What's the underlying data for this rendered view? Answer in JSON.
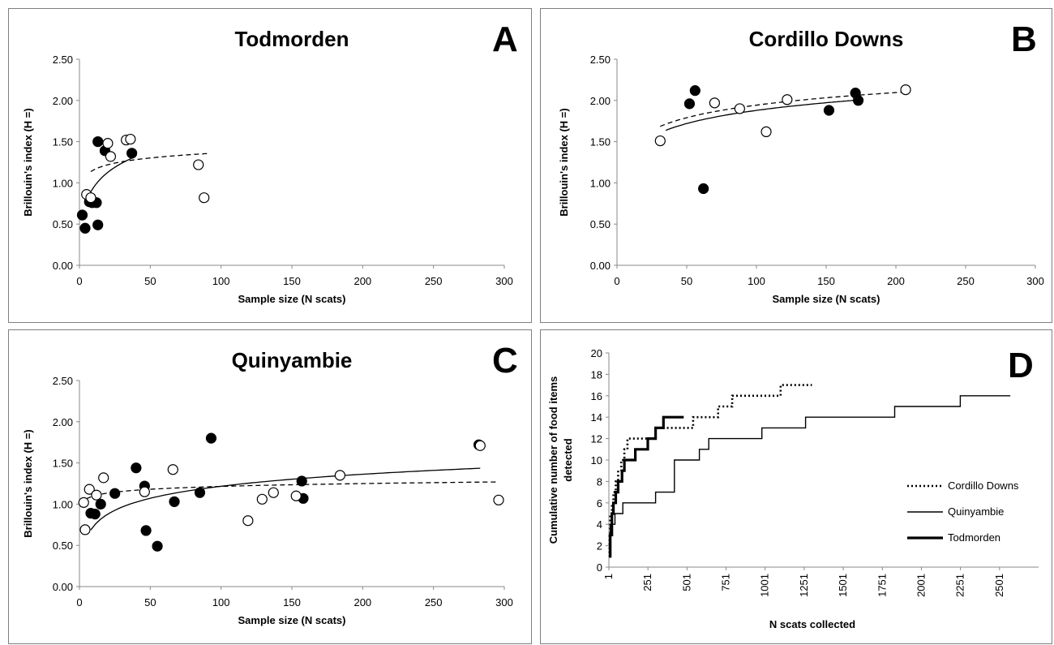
{
  "chart_data": [
    {
      "panel": "A",
      "type": "scatter",
      "title": "Todmorden",
      "xlabel": "Sample size (N scats)",
      "ylabel": "Brillouin's index (H =)",
      "xlim": [
        0,
        300
      ],
      "ylim": [
        0,
        2.5
      ],
      "x_ticks": [
        "0",
        "50",
        "100",
        "150",
        "200",
        "250",
        "300"
      ],
      "y_ticks": [
        "0.00",
        "0.50",
        "1.00",
        "1.50",
        "2.00",
        "2.50"
      ],
      "gridlines": false,
      "series": [
        {
          "marker": "filled",
          "x": [
            2,
            4,
            7,
            9,
            12,
            13,
            18,
            37
          ],
          "y": [
            0.61,
            0.45,
            0.77,
            0.76,
            0.76,
            1.5,
            1.39,
            1.36
          ]
        },
        {
          "marker": "open",
          "x": [
            5,
            8,
            20,
            22,
            33,
            36,
            84,
            88
          ],
          "y": [
            0.86,
            0.82,
            1.48,
            1.32,
            1.52,
            1.53,
            1.22,
            0.82
          ]
        },
        {
          "marker": "filled",
          "x": [
            13
          ],
          "y": [
            0.49
          ]
        }
      ],
      "trend_solid": {
        "a": 0.2,
        "b": 0.3,
        "c": 2.0,
        "xmin": 6,
        "xmax": 38
      },
      "trend_dashed": {
        "a": 0.95,
        "b": 0.09,
        "c": 0,
        "xmin": 8,
        "xmax": 90
      }
    },
    {
      "panel": "B",
      "type": "scatter",
      "title": "Cordillo Downs",
      "xlabel": "Sample size (N scats)",
      "ylabel": "Brillouin's index (H =)",
      "xlim": [
        0,
        300
      ],
      "ylim": [
        0,
        2.5
      ],
      "x_ticks": [
        "0",
        "50",
        "100",
        "150",
        "200",
        "250",
        "300"
      ],
      "y_ticks": [
        "0.00",
        "0.50",
        "1.00",
        "1.50",
        "2.00",
        "2.50"
      ],
      "gridlines": false,
      "series": [
        {
          "marker": "filled",
          "x": [
            52,
            56,
            62,
            152,
            171,
            173
          ],
          "y": [
            1.96,
            2.12,
            0.93,
            1.88,
            2.09,
            2.0
          ]
        },
        {
          "marker": "open",
          "x": [
            31,
            70,
            88,
            107,
            122,
            207
          ],
          "y": [
            1.51,
            1.97,
            1.9,
            1.62,
            2.01,
            2.13
          ]
        }
      ],
      "trend_solid": {
        "a": 0.82,
        "b": 0.23,
        "c": 0,
        "xmin": 35,
        "xmax": 173
      },
      "trend_dashed": {
        "a": 0.93,
        "b": 0.22,
        "c": 0,
        "xmin": 31,
        "xmax": 207
      }
    },
    {
      "panel": "C",
      "type": "scatter",
      "title": "Quinyambie",
      "xlabel": "Sample size (N scats)",
      "ylabel": "Brillouin's index (H =)",
      "xlim": [
        0,
        300
      ],
      "ylim": [
        0,
        2.5
      ],
      "x_ticks": [
        "0",
        "50",
        "100",
        "150",
        "200",
        "250",
        "300"
      ],
      "y_ticks": [
        "0.00",
        "0.50",
        "1.00",
        "1.50",
        "2.00",
        "2.50"
      ],
      "gridlines": false,
      "series": [
        {
          "marker": "filled",
          "x": [
            8,
            11,
            15,
            25,
            40,
            46,
            47,
            55,
            67,
            85,
            93,
            157,
            158,
            282
          ],
          "y": [
            0.89,
            0.88,
            1.0,
            1.13,
            1.44,
            1.22,
            0.68,
            0.49,
            1.03,
            1.14,
            1.8,
            1.28,
            1.07,
            1.72
          ]
        },
        {
          "marker": "open",
          "x": [
            3,
            4,
            7,
            12,
            17,
            46,
            66,
            119,
            129,
            137,
            153,
            184,
            283,
            296
          ],
          "y": [
            1.02,
            0.69,
            1.18,
            1.11,
            1.32,
            1.15,
            1.42,
            0.8,
            1.06,
            1.14,
            1.1,
            1.35,
            1.71,
            1.05
          ]
        }
      ],
      "trend_solid": {
        "a": 0.25,
        "b": 0.21,
        "c": 0,
        "xmin": 8,
        "xmax": 283
      },
      "trend_dashed": {
        "a": 0.985,
        "b": 0.05,
        "c": 0,
        "xmin": 5,
        "xmax": 296
      }
    },
    {
      "panel": "D",
      "type": "line",
      "title": "",
      "xlabel": "N scats collected",
      "ylabel": "Cumulative number of food items detected",
      "xlim": [
        1,
        2751
      ],
      "ylim": [
        0,
        20
      ],
      "x_ticks": [
        "1",
        "251",
        "501",
        "751",
        "1001",
        "1251",
        "1501",
        "1751",
        "2001",
        "2251",
        "2501"
      ],
      "y_ticks": [
        "0",
        "2",
        "4",
        "6",
        "8",
        "10",
        "12",
        "14",
        "16",
        "18",
        "20"
      ],
      "gridlines": false,
      "legend_position": "right",
      "series": [
        {
          "name": "Cordillo Downs",
          "style": "dotted",
          "x": [
            1,
            5,
            10,
            20,
            30,
            45,
            60,
            80,
            100,
            120,
            200,
            300,
            470,
            540,
            650,
            700,
            790,
            1060,
            1100,
            1300
          ],
          "y": [
            1,
            3,
            5,
            6,
            7,
            8,
            9,
            10,
            11,
            12,
            12,
            13,
            13,
            14,
            14,
            15,
            16,
            16,
            17,
            17
          ]
        },
        {
          "name": "Quinyambie",
          "style": "solid-thin",
          "x": [
            1,
            10,
            40,
            90,
            150,
            300,
            310,
            400,
            420,
            580,
            640,
            980,
            1260,
            1830,
            2250,
            2570
          ],
          "y": [
            1,
            4,
            5,
            6,
            6,
            7,
            7,
            7,
            10,
            11,
            12,
            13,
            14,
            15,
            16,
            16
          ],
          "steps": true
        },
        {
          "name": "Todmorden",
          "style": "solid-thick",
          "x": [
            1,
            10,
            20,
            30,
            45,
            60,
            85,
            100,
            170,
            250,
            300,
            330,
            350,
            380,
            400,
            480
          ],
          "y": [
            1,
            3,
            5,
            6,
            7,
            8,
            9,
            10,
            11,
            12,
            13,
            13,
            14,
            14,
            14,
            14
          ],
          "steps": true
        }
      ]
    }
  ],
  "panels": {
    "a": {
      "letter": "A"
    },
    "b": {
      "letter": "B"
    },
    "c": {
      "letter": "C"
    },
    "d": {
      "letter": "D"
    }
  }
}
